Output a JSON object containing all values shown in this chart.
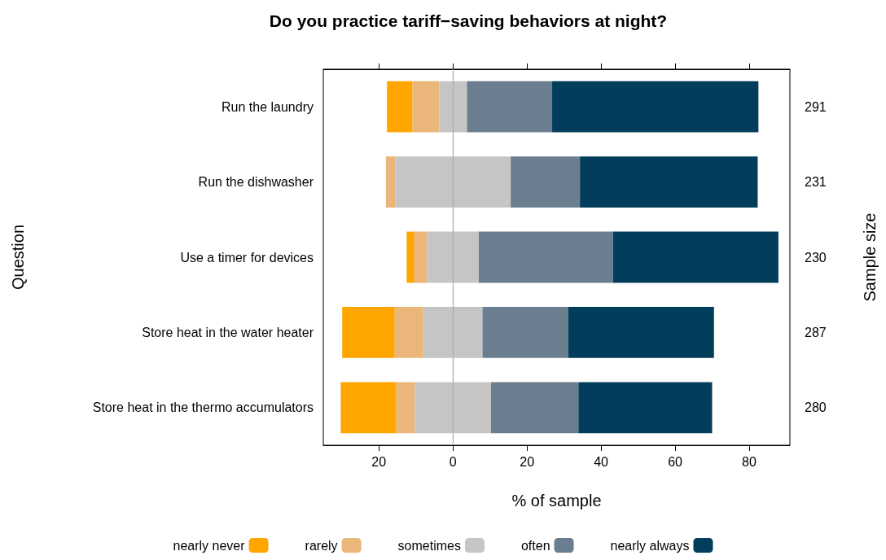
{
  "chart_data": {
    "type": "bar",
    "orientation": "horizontal",
    "title": "Do you practice tariff−saving behaviors at night?",
    "xlabel": "% of sample",
    "ylabel": "Question",
    "y2label": "Sample size",
    "categories": [
      "Run the laundry",
      "Run the dishwasher",
      "Use a timer for devices",
      "Store heat in the water heater",
      "Store heat in the thermo accumulators"
    ],
    "y2_categories": [
      "291",
      "231",
      "230",
      "287",
      "280"
    ],
    "series": [
      {
        "name": "nearly never",
        "color": "#ffa500",
        "base": [
          -17.8,
          null,
          -12.5,
          -29.9,
          -30.3
        ],
        "values": [
          6.9,
          null,
          2.1,
          14.2,
          15.0
        ]
      },
      {
        "name": "rarely",
        "color": "#ebb67a",
        "base": [
          -10.9,
          -18.1,
          -10.4,
          -15.7,
          -15.3
        ],
        "values": [
          7.2,
          2.5,
          3.4,
          7.7,
          5.0
        ]
      },
      {
        "name": "sometimes",
        "color": "#c5c5c5",
        "base": [
          -3.7,
          -15.6,
          -7.0,
          -8.0,
          -10.3
        ],
        "values": [
          7.5,
          31.2,
          14.0,
          16.0,
          20.6
        ]
      },
      {
        "name": "often",
        "color": "#6b7e8f",
        "base": [
          3.8,
          15.6,
          7.0,
          8.0,
          10.3
        ],
        "values": [
          23.0,
          18.7,
          36.2,
          23.1,
          23.6
        ]
      },
      {
        "name": "nearly always",
        "color": "#023e5c",
        "base": [
          26.8,
          34.3,
          43.2,
          31.1,
          33.9
        ],
        "values": [
          55.7,
          48.0,
          44.7,
          39.4,
          36.1
        ]
      }
    ],
    "xlim": [
      -35,
      91
    ],
    "xticks": [
      {
        "value": -20,
        "label": "20"
      },
      0,
      20,
      40,
      60,
      80
    ],
    "ref_lines": [
      {
        "axis": "x",
        "value": 0,
        "color": "#b0b0b0"
      }
    ],
    "grid": false,
    "legend": "bottom"
  }
}
